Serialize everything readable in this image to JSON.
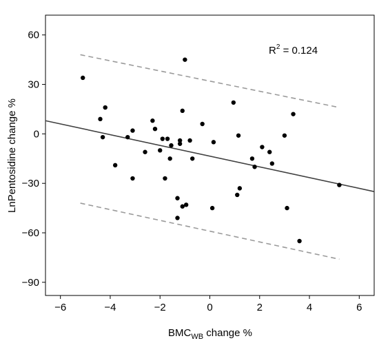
{
  "chart_data": {
    "type": "scatter",
    "xlabel_main": "BMC",
    "xlabel_sub": "WB",
    "xlabel_rest": " change %",
    "ylabel": "LnPentosidine change %",
    "annotation": {
      "prefix": "R",
      "sup": "2",
      "rest": " = 0.124"
    },
    "xlim": [
      -6.6,
      6.6
    ],
    "ylim": [
      -98,
      72
    ],
    "xticks": [
      -6,
      -4,
      -2,
      0,
      2,
      4,
      6
    ],
    "xtick_labels": [
      "−6",
      "−4",
      "−2",
      "0",
      "2",
      "4",
      "6"
    ],
    "yticks": [
      60,
      30,
      0,
      -30,
      -60,
      -90
    ],
    "ytick_labels": [
      "60",
      "30",
      "0",
      "−30",
      "−60",
      "−90"
    ],
    "grid": false,
    "points": [
      {
        "x": -5.1,
        "y": 34
      },
      {
        "x": -1.0,
        "y": 45
      },
      {
        "x": -4.2,
        "y": 16
      },
      {
        "x": -4.4,
        "y": 9
      },
      {
        "x": -4.3,
        "y": -2
      },
      {
        "x": -3.8,
        "y": -19
      },
      {
        "x": -3.3,
        "y": -2
      },
      {
        "x": -3.1,
        "y": 2
      },
      {
        "x": -3.1,
        "y": -27
      },
      {
        "x": -2.6,
        "y": -11
      },
      {
        "x": -2.3,
        "y": 8
      },
      {
        "x": -2.2,
        "y": 3
      },
      {
        "x": -2.0,
        "y": -10
      },
      {
        "x": -1.9,
        "y": -3
      },
      {
        "x": -1.8,
        "y": -27
      },
      {
        "x": -1.7,
        "y": -3
      },
      {
        "x": -1.6,
        "y": -15
      },
      {
        "x": -1.55,
        "y": -7
      },
      {
        "x": -1.3,
        "y": -51
      },
      {
        "x": -1.3,
        "y": -39
      },
      {
        "x": -1.2,
        "y": -6
      },
      {
        "x": -1.2,
        "y": -4
      },
      {
        "x": -1.1,
        "y": 14
      },
      {
        "x": -1.1,
        "y": -44
      },
      {
        "x": -0.95,
        "y": -43
      },
      {
        "x": -0.8,
        "y": -4
      },
      {
        "x": -0.7,
        "y": -15
      },
      {
        "x": -0.3,
        "y": 6
      },
      {
        "x": 0.1,
        "y": -45
      },
      {
        "x": 0.15,
        "y": -5
      },
      {
        "x": 0.95,
        "y": 19
      },
      {
        "x": 1.1,
        "y": -37
      },
      {
        "x": 1.15,
        "y": -1
      },
      {
        "x": 1.2,
        "y": -33
      },
      {
        "x": 1.7,
        "y": -15
      },
      {
        "x": 1.8,
        "y": -20
      },
      {
        "x": 2.1,
        "y": -8
      },
      {
        "x": 2.4,
        "y": -11
      },
      {
        "x": 2.5,
        "y": -18
      },
      {
        "x": 3.0,
        "y": -1
      },
      {
        "x": 3.1,
        "y": -45
      },
      {
        "x": 3.35,
        "y": 12
      },
      {
        "x": 3.6,
        "y": -65
      },
      {
        "x": 5.2,
        "y": -31
      }
    ],
    "regression_line": {
      "x": [
        -6.6,
        6.6
      ],
      "y": [
        8,
        -35
      ]
    },
    "confidence_bands": [
      {
        "x": [
          -5.2,
          5.2
        ],
        "y": [
          48,
          16
        ]
      },
      {
        "x": [
          -5.2,
          5.2
        ],
        "y": [
          -42,
          -76
        ]
      }
    ],
    "colors": {
      "points": "#000000",
      "regression": "#404040",
      "bands": "#9a9a9a",
      "axes": "#000000"
    }
  }
}
